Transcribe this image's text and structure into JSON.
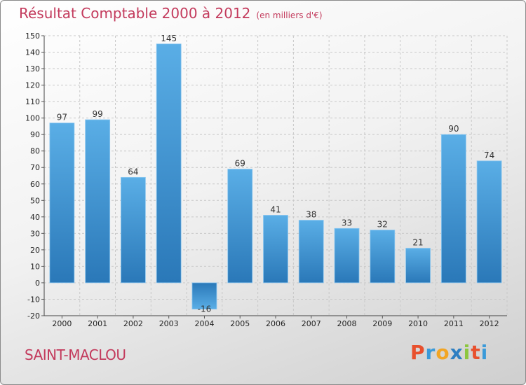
{
  "header": {
    "title": "Résultat Comptable 2000 à 2012",
    "subtitle": "(en milliers d'€)"
  },
  "footer": {
    "commune": "SAINT-MACLOU",
    "logo_letters": [
      {
        "ch": "P",
        "color": "#e8502d"
      },
      {
        "ch": "r",
        "color": "#3a9ad9"
      },
      {
        "ch": "o",
        "color": "#f2a524"
      },
      {
        "ch": "x",
        "color": "#2e7fc2"
      },
      {
        "ch": "i",
        "color": "#8cc63f"
      },
      {
        "ch": "t",
        "color": "#e8502d"
      },
      {
        "ch": "i",
        "color": "#3a9ad9"
      }
    ]
  },
  "chart_data": {
    "type": "bar",
    "title": "Résultat Comptable 2000 à 2012",
    "subtitle": "(en milliers d'€)",
    "categories": [
      "2000",
      "2001",
      "2002",
      "2003",
      "2004",
      "2005",
      "2006",
      "2007",
      "2008",
      "2009",
      "2010",
      "2011",
      "2012"
    ],
    "values": [
      97,
      99,
      64,
      145,
      -16,
      69,
      41,
      38,
      33,
      32,
      21,
      90,
      74
    ],
    "ylim": [
      -20,
      150
    ],
    "yticks": [
      -20,
      -10,
      0,
      10,
      20,
      30,
      40,
      50,
      60,
      70,
      80,
      90,
      100,
      110,
      120,
      130,
      140,
      150
    ],
    "grid": true,
    "bar_color_top": "#5aaee6",
    "bar_color_bottom": "#2a78b8"
  }
}
